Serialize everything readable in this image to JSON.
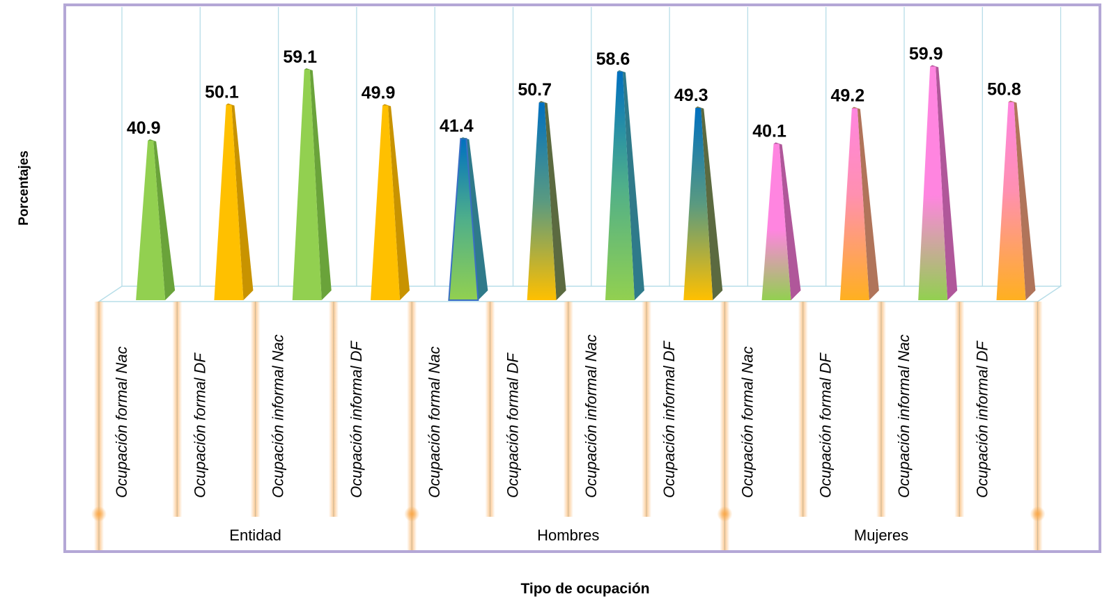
{
  "chart_data": {
    "type": "bar",
    "title": "",
    "xlabel": "Tipo de ocupación",
    "ylabel": "Porcentajes",
    "ylim": [
      0,
      62
    ],
    "grid": "vertical",
    "groups": [
      {
        "name": "Entidad",
        "categories": [
          "Ocupación formal Nac",
          "Ocupación formal DF",
          "Ocupación informal Nac",
          "Ocupación informal DF"
        ],
        "values": [
          40.9,
          50.1,
          59.1,
          49.9
        ]
      },
      {
        "name": "Hombres",
        "categories": [
          "Ocupación formal Nac",
          "Ocupación formal DF",
          "Ocupación informal Nac",
          "Ocupación informal DF"
        ],
        "values": [
          41.4,
          50.7,
          58.6,
          49.3
        ]
      },
      {
        "name": "Mujeres",
        "categories": [
          "Ocupación formal Nac",
          "Ocupación formal DF",
          "Ocupación informal Nac",
          "Ocupación informal DF"
        ],
        "values": [
          40.1,
          49.2,
          59.9,
          50.8
        ]
      }
    ],
    "colors": {
      "green": "#92d050",
      "orange": "#ffc000",
      "blue": "#0070c0",
      "pink": "#ff85e0",
      "frame": "#b4a7d6",
      "grid": "#b7dde8",
      "glow": "#fbc68c"
    }
  }
}
